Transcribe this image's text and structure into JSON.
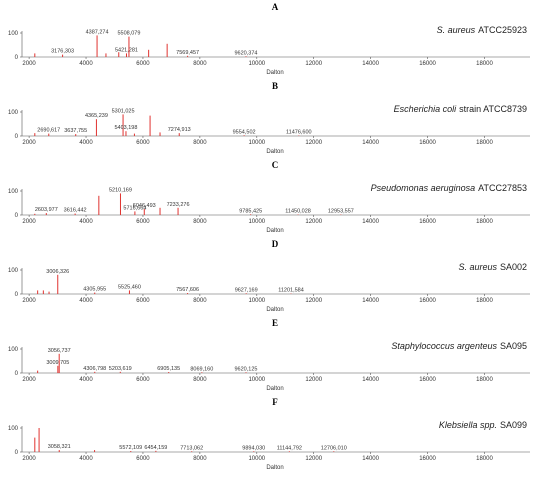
{
  "chart_data": [
    {
      "type": "stem",
      "title": "A",
      "species": "S. aureus",
      "strain": "ATCC25923",
      "xlabel": "Dalton",
      "color": "#e0322f",
      "xlim": [
        1750,
        19600
      ],
      "xticks": [
        2000,
        4000,
        6000,
        8000,
        10000,
        12000,
        14000,
        16000,
        18000
      ],
      "ylim": [
        0,
        100
      ],
      "yticks": [
        0,
        100
      ],
      "x": [
        2200,
        3176.303,
        4387.274,
        4700,
        5150,
        5421.281,
        5508.079,
        6200,
        6850,
        7569.457,
        9620.374
      ],
      "values": [
        15,
        10,
        90,
        15,
        20,
        15,
        85,
        30,
        55,
        5,
        3
      ],
      "x_labels": [
        null,
        "3176,303",
        "4387,274",
        null,
        null,
        "5421,281",
        "5508,079",
        null,
        null,
        "7569,457",
        "9620,374"
      ]
    },
    {
      "type": "stem",
      "title": "B",
      "species": "Escherichia coli",
      "strain": "strain ATCC8739",
      "xlabel": "Dalton",
      "color": "#e0322f",
      "xlim": [
        1750,
        19600
      ],
      "xticks": [
        2000,
        4000,
        6000,
        8000,
        10000,
        12000,
        14000,
        16000,
        18000
      ],
      "ylim": [
        0,
        100
      ],
      "yticks": [
        0,
        100
      ],
      "x": [
        2200,
        2690.617,
        3637.755,
        4365.239,
        5301.025,
        5403.198,
        5700,
        6250,
        6600,
        7274.913,
        9554.502,
        11476.6
      ],
      "values": [
        12,
        10,
        8,
        70,
        90,
        20,
        10,
        85,
        15,
        12,
        3,
        2
      ],
      "x_labels": [
        null,
        "2690,617",
        "3637,755",
        "4365,239",
        "5301,025",
        "5403,198",
        null,
        null,
        null,
        "7274,913",
        "9554,502",
        "11476,600"
      ]
    },
    {
      "type": "stem",
      "title": "C",
      "species": "Pseudomonas aeruginosa",
      "strain": "ATCC27853",
      "xlabel": "Dalton",
      "color": "#e0322f",
      "xlim": [
        1750,
        19600
      ],
      "xticks": [
        2000,
        4000,
        6000,
        8000,
        10000,
        12000,
        14000,
        16000,
        18000
      ],
      "ylim": [
        0,
        100
      ],
      "yticks": [
        0,
        100
      ],
      "x": [
        2200,
        2603.977,
        3616.442,
        4450,
        5210.169,
        5716.664,
        6046.493,
        6600,
        7233.276,
        9785.425,
        11450.028,
        12953.557
      ],
      "values": [
        5,
        8,
        6,
        80,
        90,
        15,
        25,
        30,
        30,
        3,
        2,
        2
      ],
      "x_labels": [
        null,
        "2603,977",
        "3616,442",
        null,
        "5210,169",
        "5716,664",
        "6046,493",
        null,
        "7233,276",
        "9785,425",
        "11450,028",
        "12953,557"
      ]
    },
    {
      "type": "stem",
      "title": "D",
      "species": "S. aureus",
      "strain": "SA002",
      "xlabel": "Dalton",
      "color": "#e0322f",
      "xlim": [
        1750,
        19600
      ],
      "xticks": [
        2000,
        4000,
        6000,
        8000,
        10000,
        12000,
        14000,
        16000,
        18000
      ],
      "ylim": [
        0,
        100
      ],
      "yticks": [
        0,
        100
      ],
      "x": [
        2300,
        2500,
        2700,
        3006.326,
        4305.955,
        5525.46,
        7567.606,
        9627.169,
        11201.584
      ],
      "values": [
        15,
        15,
        10,
        80,
        6,
        15,
        4,
        3,
        2
      ],
      "x_labels": [
        null,
        null,
        null,
        "3006,326",
        "4305,955",
        "5525,460",
        "7567,606",
        "9627,169",
        "11201,584"
      ]
    },
    {
      "type": "stem",
      "title": "E",
      "species": "Staphylococcus argenteus",
      "strain": "SA095",
      "xlabel": "Dalton",
      "color": "#e0322f",
      "xlim": [
        1750,
        19600
      ],
      "xticks": [
        2000,
        4000,
        6000,
        8000,
        10000,
        12000,
        14000,
        16000,
        18000
      ],
      "ylim": [
        0,
        100
      ],
      "yticks": [
        0,
        100
      ],
      "x": [
        2300,
        3009.705,
        3056.737,
        4306.798,
        5203.619,
        6905.135,
        8069.16,
        9620.125
      ],
      "values": [
        10,
        30,
        80,
        5,
        5,
        4,
        3,
        3
      ],
      "x_labels": [
        null,
        "3009,705",
        "3056,737",
        "4306,798",
        "5203,619",
        "6905,135",
        "8069,160",
        "9620,125"
      ]
    },
    {
      "type": "stem",
      "title": "F",
      "species": "Klebsiella spp.",
      "strain": "SA099",
      "xlabel": "Dalton",
      "color": "#e0322f",
      "xlim": [
        1750,
        19600
      ],
      "xticks": [
        2000,
        4000,
        6000,
        8000,
        10000,
        12000,
        14000,
        16000,
        18000
      ],
      "ylim": [
        0,
        100
      ],
      "yticks": [
        0,
        100
      ],
      "x": [
        2200,
        2350,
        3058.321,
        4300,
        5572.109,
        6454.159,
        7713.062,
        9894.03,
        11144.792,
        12706.01
      ],
      "values": [
        60,
        100,
        8,
        8,
        4,
        5,
        3,
        3,
        3,
        3
      ],
      "x_labels": [
        null,
        null,
        "3058,321",
        null,
        "5572,109",
        "6454,159",
        "7713,062",
        "9894,030",
        "11144,792",
        "12706,010"
      ]
    }
  ]
}
